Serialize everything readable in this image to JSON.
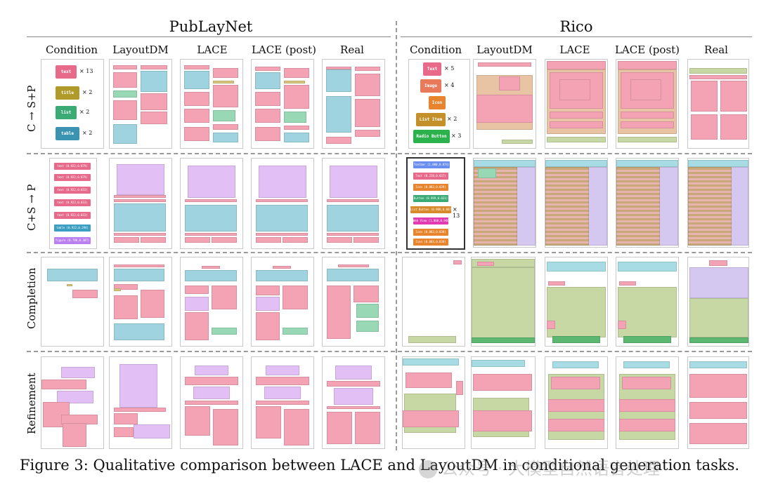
{
  "figure": {
    "datasets": [
      "PubLayNet",
      "Rico"
    ],
    "columns": [
      "Condition",
      "LayoutDM",
      "LACE",
      "LACE (post)",
      "Real"
    ],
    "rows": [
      "C → S+P",
      "C+S → P",
      "Completion",
      "Refinement"
    ],
    "caption": "Figure 3: Qualitative comparison between LACE and LayoutDM in conditional generation tasks.",
    "watermark": "公众号 · 大模型自然语言处理"
  },
  "conditions": {
    "publaynet_c": [
      {
        "label": "text",
        "count": "× 13",
        "color": "#e86a8a"
      },
      {
        "label": "title",
        "count": "× 2",
        "color": "#b09a2a"
      },
      {
        "label": "list",
        "count": "× 2",
        "color": "#3aab75"
      },
      {
        "label": "table",
        "count": "× 2",
        "color": "#3a93b0"
      }
    ],
    "rico_c": [
      {
        "label": "Text",
        "count": "× 5",
        "color": "#e86a8a"
      },
      {
        "label": "Image",
        "count": "× 4",
        "color": "#e8795a"
      },
      {
        "label": "Icon",
        "count": "",
        "color": "#e8842e"
      },
      {
        "label": "List Item",
        "count": "× 2",
        "color": "#c4902a"
      },
      {
        "label": "Radio Button",
        "count": "× 3",
        "color": "#2bb24c"
      }
    ],
    "publaynet_cs": [
      {
        "label": "text (0.922,0.079)",
        "color": "#e86a8a"
      },
      {
        "label": "text (0.922,0.079)",
        "color": "#e86a8a"
      },
      {
        "label": "text (0.922,0.033)",
        "color": "#e86a8a"
      },
      {
        "label": "text (0.922,0.033)",
        "color": "#e86a8a"
      },
      {
        "label": "text (0.922,0.033)",
        "color": "#e86a8a"
      },
      {
        "label": "table (0.922,0.294)",
        "color": "#3a9fc0"
      },
      {
        "label": "figure (0.798,0.307)",
        "color": "#b97ef0"
      }
    ],
    "rico_cs": [
      {
        "label": "Toolbar (1.000,0.074)",
        "color": "#6a8ef0"
      },
      {
        "label": "Text (0.228,0.037)",
        "color": "#e86a8a"
      },
      {
        "label": "Icon (0.083,0.039)",
        "color": "#e8842e"
      },
      {
        "label": "Button (0.999,0.031)",
        "color": "#3aab75"
      },
      {
        "label": "List Button (0.988,0.067)",
        "color": "#d88a2a",
        "count": "× 13"
      },
      {
        "label": "Web View (1.000,0.946)",
        "color": "#e23ab0"
      },
      {
        "label": "Icon (0.083,0.038)",
        "color": "#e8842e"
      },
      {
        "label": "Icon (0.083,0.038)",
        "color": "#e8842e"
      }
    ]
  },
  "palette": {
    "text": "#f4a3b4",
    "table": "#9fd3df",
    "figure": "#e2bff5",
    "title": "#d8c47a",
    "list": "#98d8b4",
    "rico_image": "#e8c4a4",
    "rico_green": "#c8d8a4",
    "rico_purple": "#d4c8f0",
    "rico_cyan": "#a8dce4"
  }
}
